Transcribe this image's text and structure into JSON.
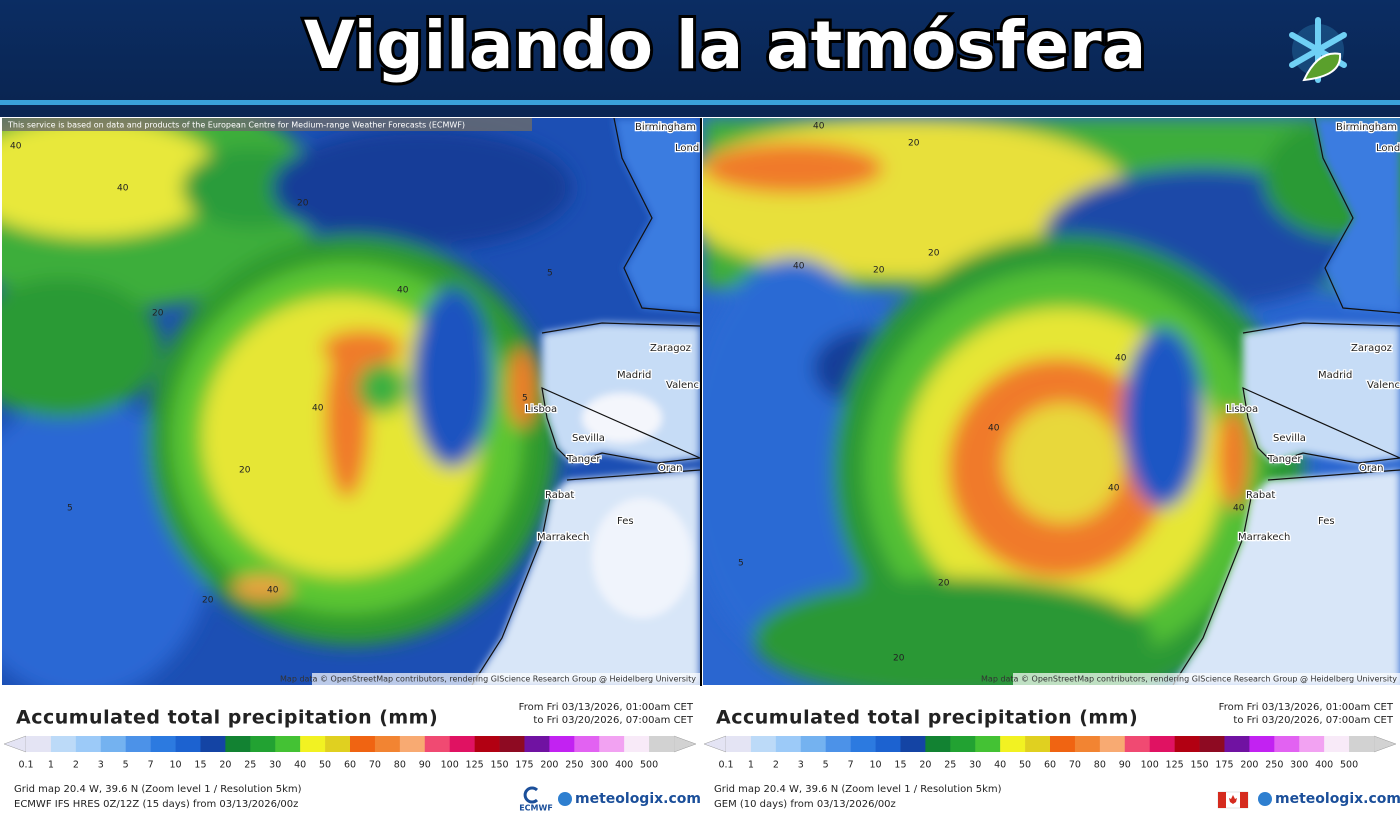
{
  "header": {
    "title": "Vigilando la atmósfera"
  },
  "legend_scale": {
    "labels": [
      0.1,
      1,
      2,
      3,
      5,
      7,
      10,
      15,
      20,
      25,
      30,
      40,
      50,
      60,
      70,
      80,
      90,
      100,
      125,
      150,
      175,
      200,
      250,
      300,
      400,
      500
    ],
    "colors": [
      "#e4e4f4",
      "#bcdaf8",
      "#9ccaf8",
      "#74b2f0",
      "#4c92e8",
      "#2c7ae0",
      "#1c62d0",
      "#1444a4",
      "#128232",
      "#22a232",
      "#44c234",
      "#f2f222",
      "#e0d020",
      "#f06412",
      "#f28432",
      "#f8aa72",
      "#f04a72",
      "#e01262",
      "#b20012",
      "#8e0a22",
      "#7012a2",
      "#c222f2",
      "#e262f2",
      "#f2a2f2",
      "#f8eaf8",
      "#d2d2d2"
    ]
  },
  "panels": [
    {
      "attribution": "This service is based on data and products of the European Centre for Medium-range Weather Forecasts (ECMWF)",
      "map_credit": "Map data © OpenStreetMap contributors, rendering GIScience Research Group @ Heidelberg University",
      "cities": [
        "Birmingham",
        "Lond",
        "Zaragoz",
        "Madrid",
        "Valenc",
        "Lisboa",
        "Sevilla",
        "Tanger",
        "Oran",
        "Rabat",
        "Fes",
        "Marrakech"
      ],
      "contour_labels": [
        40,
        40,
        20,
        20,
        40,
        40,
        20,
        20,
        40,
        5,
        5,
        5
      ],
      "legend_title": "Accumulated total precipitation (mm)",
      "period_from": "From Fri 03/13/2026, 01:00am CET",
      "period_to": "to Fri 03/20/2026, 07:00am CET",
      "grid_info": "Grid map 20.4 W, 39.6 N (Zoom level 1 / Resolution 5km)",
      "model": "ECMWF IFS HRES 0Z/12Z (15 days) from 03/13/2026/00z",
      "provider_logo": "ECMWF",
      "brand": "meteologix.com"
    },
    {
      "map_credit": "Map data © OpenStreetMap contributors, rendering GIScience Research Group @ Heidelberg University",
      "cities": [
        "Birmingham",
        "Lond",
        "Zaragoz",
        "Madrid",
        "Valenc",
        "Lisboa",
        "Sevilla",
        "Tanger",
        "Oran",
        "Rabat",
        "Fes",
        "Marrakech"
      ],
      "contour_labels": [
        40,
        20,
        40,
        20,
        20,
        40,
        40,
        40,
        20,
        40,
        5,
        20
      ],
      "legend_title": "Accumulated total precipitation (mm)",
      "period_from": "From Fri 03/13/2026, 01:00am CET",
      "period_to": "to Fri 03/20/2026, 07:00am CET",
      "grid_info": "Grid map 20.4 W, 39.6 N (Zoom level 1 / Resolution 5km)",
      "model": "GEM (10 days) from 03/13/2026/00z",
      "brand": "meteologix.com"
    }
  ]
}
